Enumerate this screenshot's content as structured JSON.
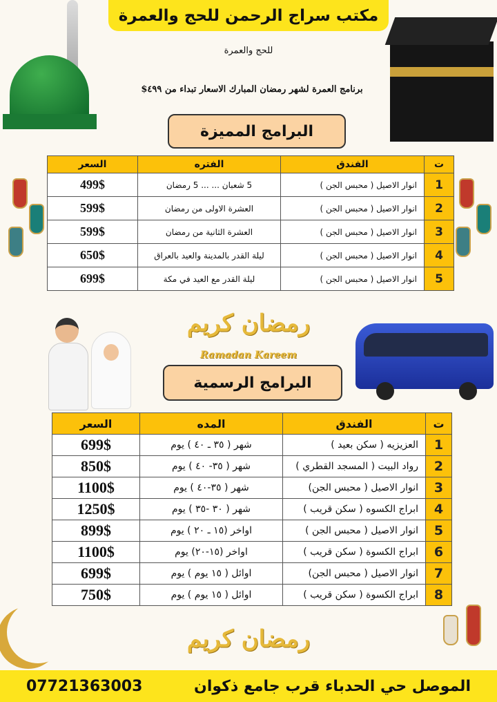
{
  "header": {
    "title": "مكتب سراج الرحمن للحج والعمرة",
    "subtitle": "للحج والعمرة",
    "tagline": "برنامج العمرة لشهر رمضان المبارك الاسعار تبداء من ٤٩٩$"
  },
  "premium": {
    "title": "البرامج المميزة",
    "columns": [
      "ت",
      "الفندق",
      "الفتره",
      "السعر"
    ],
    "rows": [
      {
        "n": "1",
        "hotel": "انوار الاصيل ( محبس الجن )",
        "period": "5 شعبان ... ... 5 رمضان",
        "price": "499$"
      },
      {
        "n": "2",
        "hotel": "انوار الاصيل ( محبس الجن )",
        "period": "العشرة الاولى من رمضان",
        "price": "599$"
      },
      {
        "n": "3",
        "hotel": "انوار الاصيل ( محبس الجن )",
        "period": "العشرة الثانية من رمضان",
        "price": "599$"
      },
      {
        "n": "4",
        "hotel": "انوار الاصيل ( محبس الجن )",
        "period": "ليلة القدر بالمدينة والعيد بالعراق",
        "price": "650$"
      },
      {
        "n": "5",
        "hotel": "انوار الاصيل ( محبس الجن )",
        "period": "ليلة القدر مع العيد في مكة",
        "price": "699$"
      }
    ]
  },
  "decor": {
    "ramadan_ar": "رمضان كريم",
    "ramadan_en": "Ramadan Kareem"
  },
  "official": {
    "title": "البرامج الرسمية",
    "columns": [
      "ت",
      "الفندق",
      "المده",
      "السعر"
    ],
    "rows": [
      {
        "n": "1",
        "hotel": "العزيزيه ( سكن بعيد )",
        "duration": "شهر ( ٣٥ ـ ٤٠ ) يوم",
        "price": "699$"
      },
      {
        "n": "2",
        "hotel": "رواد البيت ( المسجد القطري )",
        "duration": "شهر ( ٣٥- ٤٠ ) يوم",
        "price": "850$"
      },
      {
        "n": "3",
        "hotel": "انوار الاصيل ( محبس الجن)",
        "duration": "شهر ( ٣٥-٤٠ ) يوم",
        "price": "1100$"
      },
      {
        "n": "4",
        "hotel": "ابراج الكسوه ( سكن قريب )",
        "duration": "شهر ( ٣٠ -٣٥ ) يوم",
        "price": "1250$"
      },
      {
        "n": "5",
        "hotel": "انوار الاصيل ( محبس الجن )",
        "duration": "اواخر (١٥ ـ ٢٠ ) يوم",
        "price": "899$"
      },
      {
        "n": "6",
        "hotel": "ابراج الكسوة ( سكن قريب )",
        "duration": "اواخر (١٥-٢٠) يوم",
        "price": "1100$"
      },
      {
        "n": "7",
        "hotel": "انوار الاصيل ( محبس الجن)",
        "duration": "اوائل ( ١٥ يوم ) يوم",
        "price": "699$"
      },
      {
        "n": "8",
        "hotel": "ابراج الكسوة ( سكن قريب )",
        "duration": "اوائل ( ١٥ يوم ) يوم",
        "price": "750$"
      }
    ]
  },
  "footer": {
    "phone": "07721363003",
    "address": "الموصل حي الحدباء قرب جامع ذكوان"
  },
  "colors": {
    "yellow": "#fde41c",
    "header_gold": "#fcc10a",
    "title_box": "#fbd3a3"
  }
}
